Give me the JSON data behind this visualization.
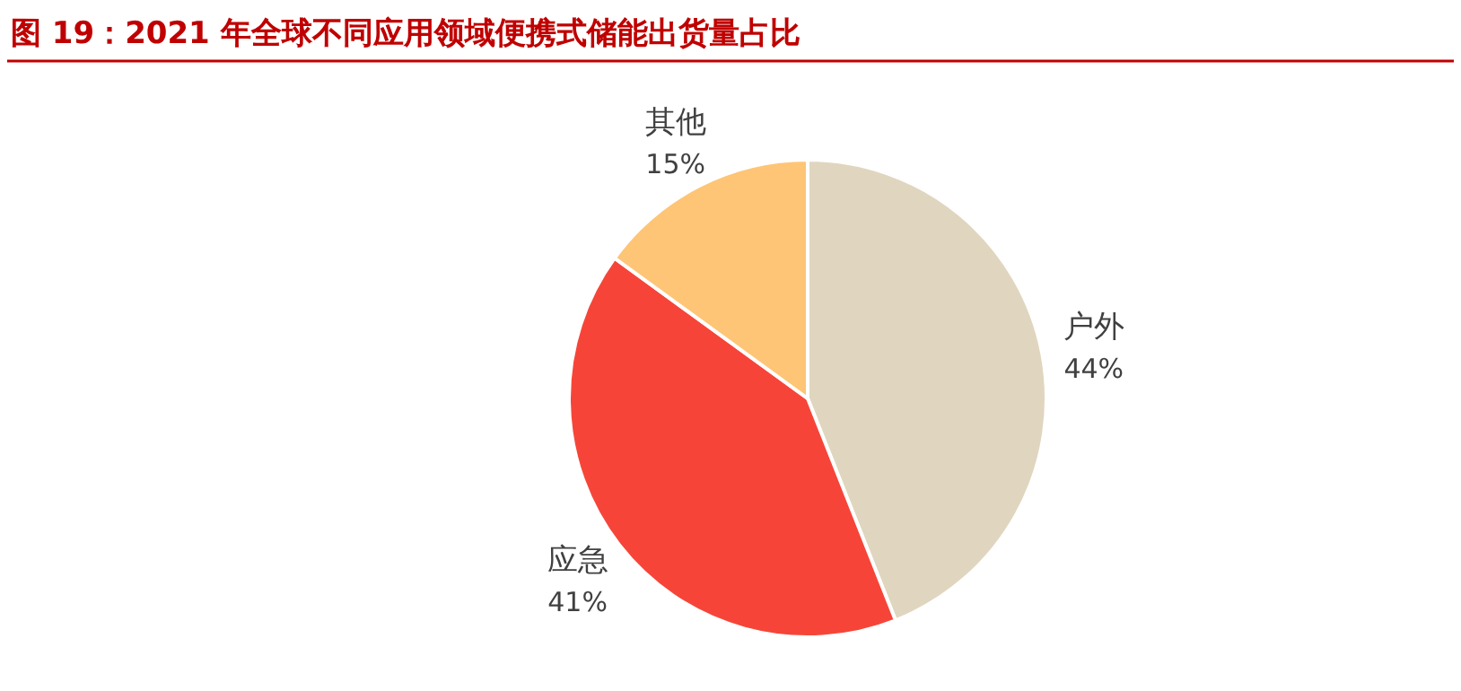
{
  "chart_data": {
    "type": "pie",
    "title": "图 19：2021 年全球不同应用领域便携式储能出货量占比",
    "categories": [
      "户外",
      "应急",
      "其他"
    ],
    "values": [
      44,
      41,
      15
    ],
    "colors": [
      "#e0d6bf",
      "#f64538",
      "#fec576"
    ],
    "value_labels": [
      "44%",
      "41%",
      "15%"
    ]
  }
}
